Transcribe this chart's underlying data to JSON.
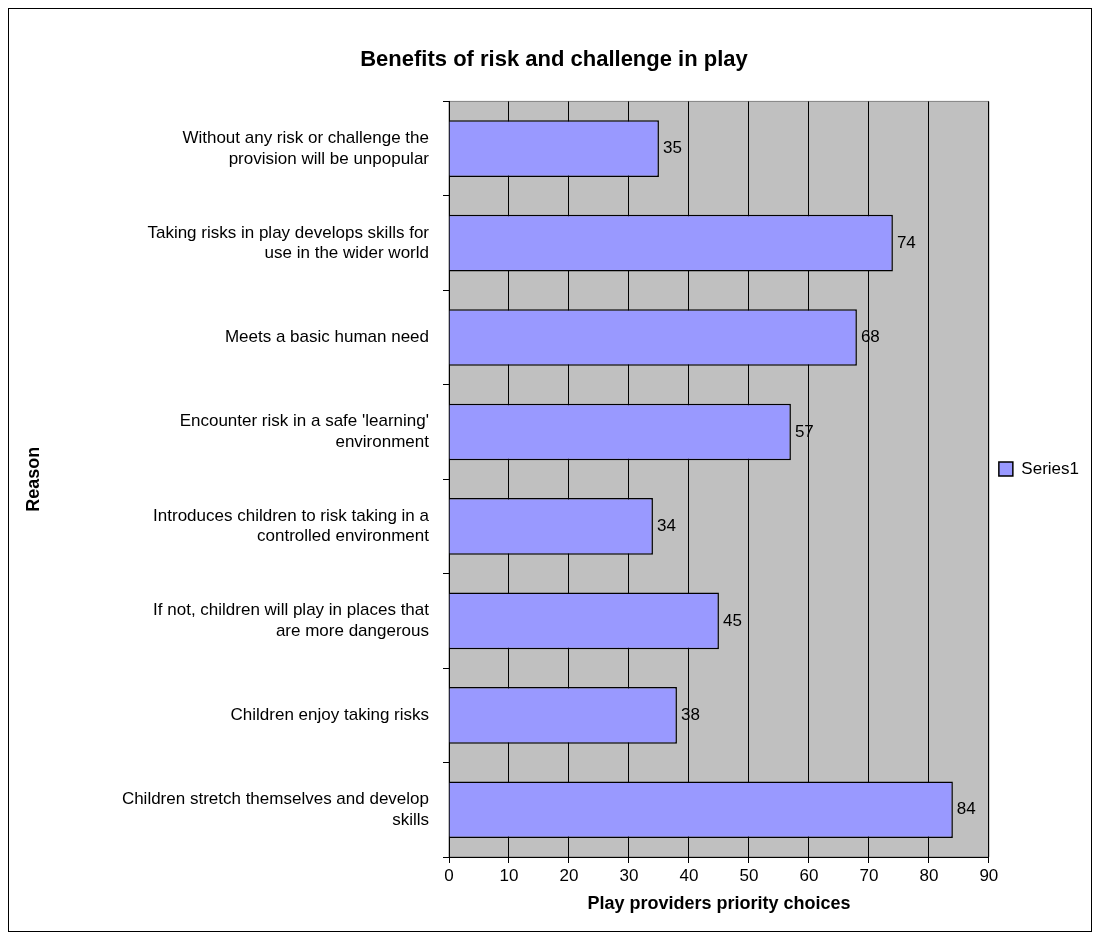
{
  "chart_data": {
    "type": "bar",
    "orientation": "horizontal",
    "title": "Benefits of risk and challenge in play",
    "xlabel": "Play providers priority choices",
    "ylabel": "Reason",
    "categories": [
      "Without any risk or challenge the provision will be unpopular",
      "Taking risks in play develops skills for use in the wider world",
      "Meets a basic human need",
      "Encounter risk in a safe 'learning' environment",
      "Introduces children to risk taking in a controlled environment",
      "If not, children will play in places that are more dangerous",
      "Children enjoy taking risks",
      "Children stretch themselves and develop skills"
    ],
    "series": [
      {
        "name": "Series1",
        "color": "#9999ff",
        "values": [
          35,
          74,
          68,
          57,
          34,
          45,
          38,
          84
        ]
      }
    ],
    "xlim": [
      0,
      90
    ],
    "xticks": [
      0,
      10,
      20,
      30,
      40,
      50,
      60,
      70,
      80,
      90
    ],
    "grid": "x",
    "legend": "right",
    "data_labels": true
  }
}
